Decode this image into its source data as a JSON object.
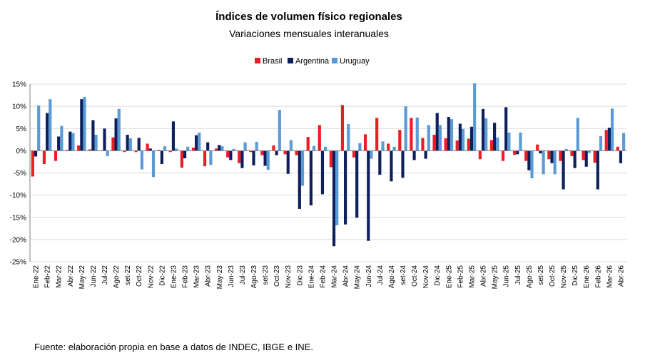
{
  "chart_data": {
    "type": "bar",
    "title": "Índices de volumen físico regionales",
    "subtitle": "Variaciones mensuales interanuales",
    "ylim": [
      -25,
      15
    ],
    "ytick_values": [
      -25,
      -20,
      -15,
      -10,
      -5,
      0,
      5,
      10,
      15
    ],
    "ytick_labels": [
      "-25%",
      "-20%",
      "-15%",
      "-10%",
      "-5%",
      "0%",
      "5%",
      "10%",
      "15%"
    ],
    "legend_position": "top-center",
    "grid": true,
    "categories": [
      "Ene-22",
      "Feb-22",
      "Mar-22",
      "Abr-22",
      "May-22",
      "Jun-22",
      "Jul-22",
      "Ago-22",
      "set-22",
      "Oct-22",
      "Nov-22",
      "Dic-22",
      "Ene-23",
      "Feb-23",
      "Mar-23",
      "Abr-23",
      "May-23",
      "Jun-23",
      "Jul-23",
      "Ago-23",
      "set-23",
      "Oct-23",
      "Nov-23",
      "Dic-23",
      "Ene-24",
      "Feb-24",
      "Mar-24",
      "Abr-24",
      "May-24",
      "Jun-24",
      "Jul-24",
      "Ago-24",
      "set-24",
      "Oct-24",
      "Nov-24",
      "Dic-24",
      "Ene-25",
      "Feb-25",
      "Mar-25",
      "Abr-25",
      "May-25",
      "Jun-25",
      "Jul-25",
      "Ago-25",
      "set-25",
      "Oct-25",
      "Nov-25",
      "Dic-25",
      "Ene-26",
      "Feb-26",
      "Mar-26",
      "Abr-26"
    ],
    "series": [
      {
        "name": "Brasil",
        "color": "#ee1c25",
        "values": [
          -5.8,
          -3.0,
          -2.3,
          0.2,
          1.2,
          0.3,
          0.1,
          3.0,
          -0.3,
          -0.3,
          1.6,
          0.2,
          -0.3,
          -3.8,
          0.7,
          -3.5,
          0.5,
          -1.5,
          -2.8,
          -0.3,
          -1.0,
          1.2,
          -0.8,
          -1.0,
          3.1,
          5.8,
          -3.7,
          10.3,
          -1.5,
          3.7,
          7.4,
          1.6,
          4.7,
          7.4,
          2.9,
          3.6,
          2.8,
          2.3,
          2.7,
          -1.9,
          2.4,
          -2.3,
          -0.9,
          -2.3,
          1.4,
          -1.9,
          -2.3,
          -1.2,
          -2.1,
          -2.7,
          4.7,
          0.9
        ]
      },
      {
        "name": "Argentina",
        "color": "#0f1f5c",
        "values": [
          -1.3,
          8.5,
          3.2,
          4.3,
          11.6,
          6.9,
          5.0,
          7.3,
          3.6,
          2.9,
          0.5,
          -3.0,
          6.6,
          -1.7,
          3.5,
          1.9,
          1.3,
          -2.1,
          -3.9,
          -3.3,
          -3.4,
          -1.0,
          -5.2,
          -13.1,
          -12.3,
          -9.8,
          -21.5,
          -16.6,
          -15.1,
          -20.3,
          -5.4,
          -6.9,
          -6.1,
          -2.1,
          -1.8,
          8.5,
          7.6,
          6.1,
          5.4,
          9.4,
          6.3,
          9.8,
          -0.8,
          -4.4,
          -0.6,
          -2.8,
          -8.7,
          -3.9,
          -3.6,
          -8.7,
          5.2,
          -2.8
        ]
      },
      {
        "name": "Uruguay",
        "color": "#5b9bd5",
        "values": [
          10.2,
          11.6,
          5.6,
          4.0,
          12.1,
          3.6,
          -1.2,
          9.4,
          2.8,
          -4.2,
          -5.9,
          1.0,
          0.5,
          0.9,
          4.1,
          -3.2,
          1.0,
          0.4,
          1.9,
          2.0,
          -4.3,
          9.2,
          2.4,
          -7.9,
          1.1,
          0.9,
          -16.8,
          6.0,
          1.7,
          -1.8,
          2.1,
          0.9,
          10.0,
          7.5,
          5.8,
          5.8,
          7.1,
          4.9,
          15.2,
          7.3,
          3.0,
          4.1,
          4.1,
          -6.2,
          -5.3,
          -5.3,
          0.4,
          7.4,
          -0.5,
          3.3,
          9.5,
          4.0
        ]
      }
    ]
  },
  "source_note": "Fuente: elaboración propia en base a datos de INDEC, IBGE e INE."
}
